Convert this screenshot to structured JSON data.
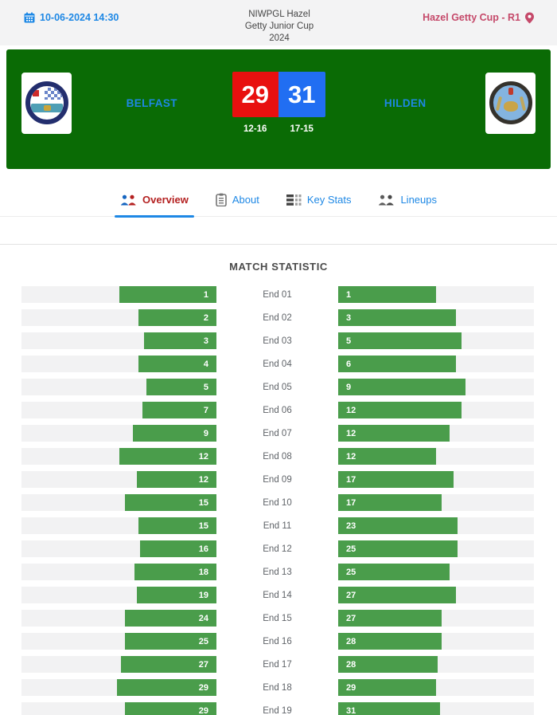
{
  "top_bar": {
    "datetime": "10-06-2024 14:30",
    "title_lines": [
      "NIWPGL Hazel",
      "Getty Junior Cup",
      "2024"
    ],
    "round_label": "Hazel Getty Cup - R1"
  },
  "match_header": {
    "home_team": "BELFAST",
    "away_team": "HILDEN",
    "home_score": "29",
    "away_score": "31",
    "home_sub_score": "12-16",
    "away_sub_score": "17-15",
    "home_logo": "Belfast Bowling Club crest",
    "away_logo": "Hilden Bowling Club crest"
  },
  "tabs": [
    {
      "label": "Overview",
      "icon": "teams-overview-icon",
      "active": true
    },
    {
      "label": "About",
      "icon": "clipboard-icon",
      "active": false
    },
    {
      "label": "Key Stats",
      "icon": "stats-table-icon",
      "active": false
    },
    {
      "label": "Lineups",
      "icon": "lineups-people-icon",
      "active": false
    }
  ],
  "section": {
    "title": "MATCH STATISTIC"
  },
  "chart_data": {
    "type": "bar",
    "title": "MATCH STATISTIC",
    "orientation": "horizontal-mirrored",
    "categories": [
      "End 01",
      "End 02",
      "End 03",
      "End 04",
      "End 05",
      "End 06",
      "End 07",
      "End 08",
      "End 09",
      "End 10",
      "End 11",
      "End 12",
      "End 13",
      "End 14",
      "End 15",
      "End 16",
      "End 17",
      "End 18",
      "End 19"
    ],
    "series": [
      {
        "name": "BELFAST",
        "side": "left",
        "values": [
          1,
          2,
          3,
          4,
          5,
          7,
          9,
          12,
          12,
          15,
          15,
          16,
          18,
          19,
          24,
          25,
          27,
          29,
          29
        ],
        "bar_pct": [
          50,
          40,
          37,
          40,
          36,
          38,
          43,
          50,
          41,
          47,
          40,
          39,
          42,
          41,
          47,
          47,
          49,
          51,
          47
        ]
      },
      {
        "name": "HILDEN",
        "side": "right",
        "values": [
          1,
          3,
          5,
          6,
          9,
          12,
          12,
          12,
          17,
          17,
          23,
          25,
          25,
          27,
          27,
          28,
          28,
          29,
          31
        ],
        "bar_pct": [
          50,
          60,
          63,
          60,
          65,
          63,
          57,
          50,
          59,
          53,
          61,
          61,
          57,
          60,
          53,
          53,
          51,
          50,
          52
        ]
      }
    ],
    "bar_color": "#4a9d4b",
    "track_color": "#f2f2f3",
    "legend": "off",
    "grid": "off"
  },
  "colors": {
    "band_green": "#0a6b05",
    "home_score_red": "#e8100f",
    "away_score_blue": "#216ef2",
    "team_name_blue": "#1e88e5",
    "round_rose": "#c5496a",
    "active_tab_red": "#b42121",
    "topbar_bg": "#f3f3f4"
  }
}
